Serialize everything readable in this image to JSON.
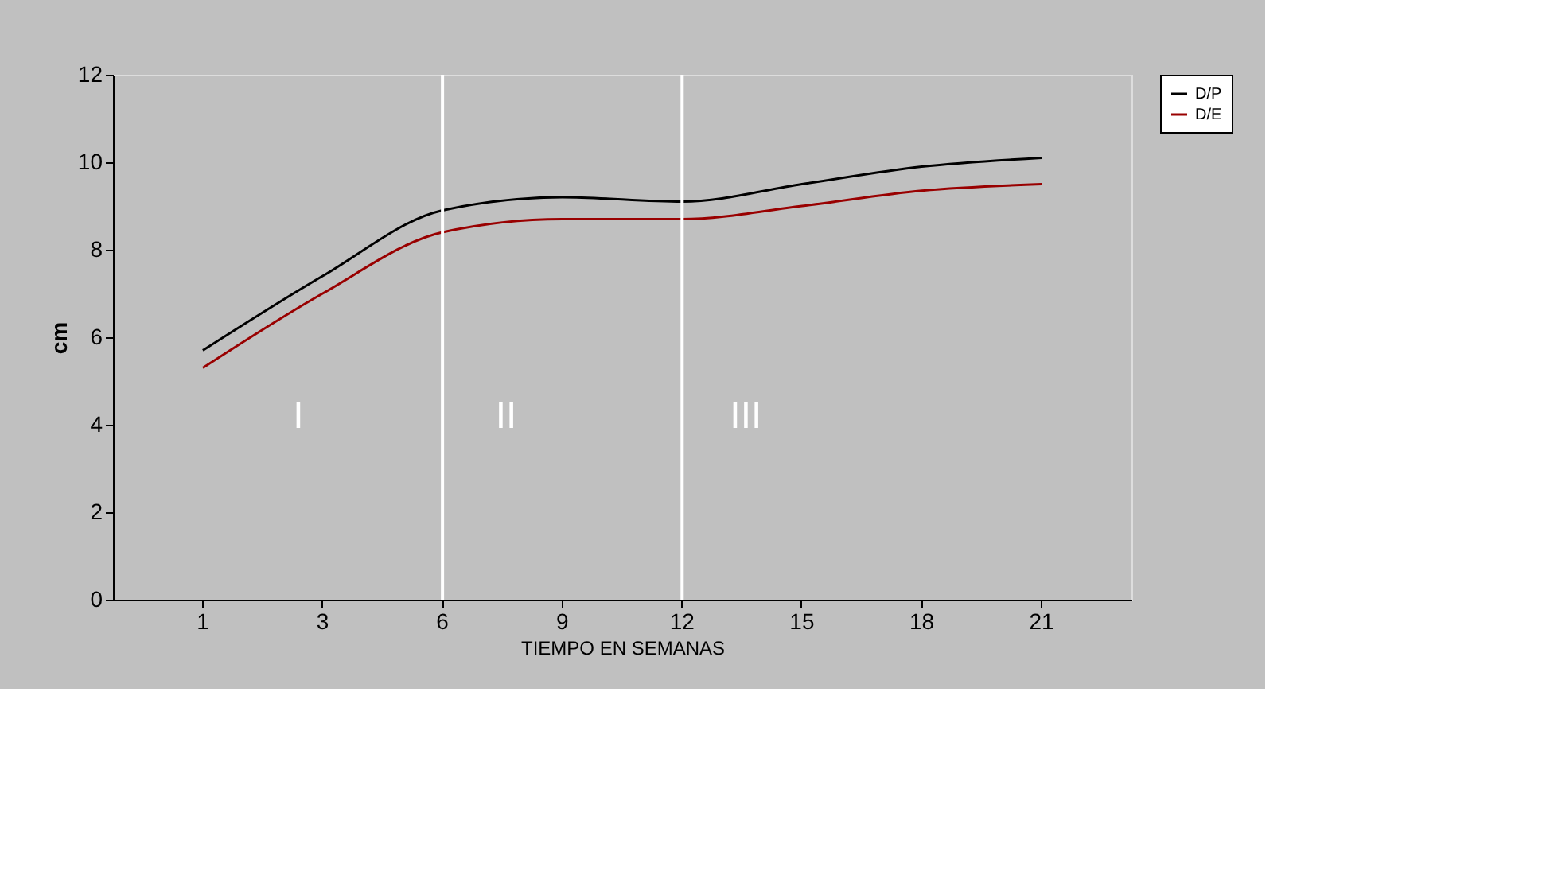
{
  "chart_data": {
    "type": "line",
    "xlabel": "TIEMPO EN SEMANAS",
    "ylabel": "cm",
    "categories": [
      "1",
      "3",
      "6",
      "9",
      "12",
      "15",
      "18",
      "21"
    ],
    "series": [
      {
        "name": "D/P",
        "color": "#000000",
        "values": [
          5.7,
          7.4,
          8.9,
          9.2,
          9.1,
          9.5,
          9.9,
          10.1
        ]
      },
      {
        "name": "D/E",
        "color": "#990000",
        "values": [
          5.3,
          7.0,
          8.4,
          8.7,
          8.7,
          9.0,
          9.35,
          9.5
        ]
      }
    ],
    "ylim": [
      0,
      12
    ],
    "yticks": [
      0,
      2,
      4,
      6,
      8,
      10,
      12
    ],
    "grid": false,
    "legend": "right",
    "marker": "none",
    "line_style": "solid",
    "ref_lines": [
      {
        "axis": "x",
        "value": "6",
        "color": "#ffffff"
      },
      {
        "axis": "x",
        "value": "12",
        "color": "#ffffff"
      }
    ],
    "annotations": [
      "I",
      "II",
      "III"
    ]
  }
}
